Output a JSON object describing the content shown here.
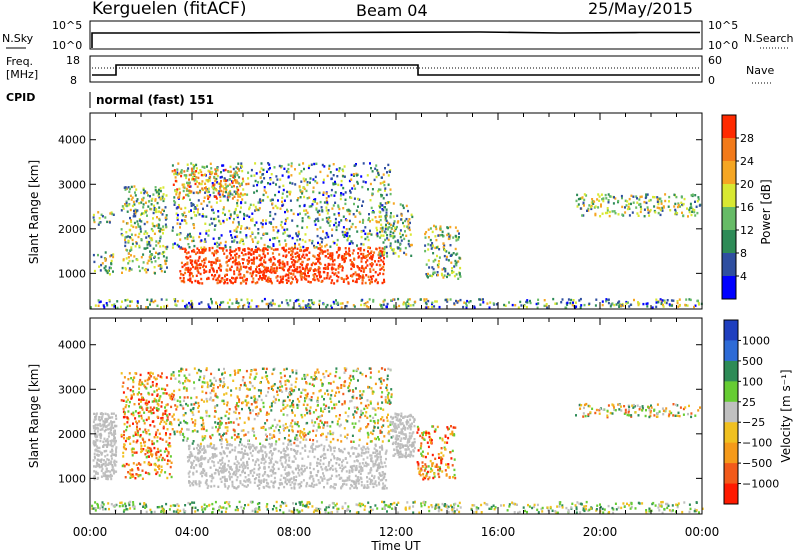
{
  "header": {
    "station": "Kerguelen (fitACF)",
    "beam": "Beam 04",
    "date": "25/May/2015"
  },
  "top_panels": {
    "nsky": {
      "label": "N.Sky",
      "ticks": [
        "10^5",
        "10^0"
      ]
    },
    "nsearch": {
      "label": "N.Search",
      "ticks": [
        "10^5",
        "10^0"
      ]
    },
    "freq": {
      "label_line1": "Freq.",
      "label_line2": "[MHz]",
      "ticks": [
        "18",
        "8"
      ]
    },
    "nave": {
      "label": "Nave",
      "ticks": [
        "60",
        "0"
      ]
    },
    "cpid": {
      "label": "CPID",
      "value": "normal (fast) 151"
    }
  },
  "chart_data": [
    {
      "type": "heatmap",
      "name": "power",
      "xlabel": "",
      "ylabel": "Slant Range [km]",
      "x_ticks": [
        "00:00",
        "04:00",
        "08:00",
        "12:00",
        "16:00",
        "20:00",
        "00:00"
      ],
      "y_ticks": [
        1000,
        2000,
        3000,
        4000
      ],
      "ylim": [
        200,
        4600
      ],
      "colorbar": {
        "label": "Power [dB]",
        "ticks": [
          4,
          8,
          12,
          16,
          20,
          24,
          28
        ],
        "colors": [
          "#0000ff",
          "#2f4fa0",
          "#2e8b57",
          "#66bb66",
          "#d8e832",
          "#f5a623",
          "#f27a1a",
          "#ff2a00"
        ]
      },
      "regions": [
        {
          "t0": 0.0,
          "t1": 0.9,
          "r0": 250,
          "r1": 450,
          "level": "mixed"
        },
        {
          "t0": 0.9,
          "t1": 13.0,
          "r0": 250,
          "r1": 450,
          "level": "mixed"
        },
        {
          "t0": 13.0,
          "t1": 24.0,
          "r0": 250,
          "r1": 450,
          "level": "mixed"
        },
        {
          "t0": 0.1,
          "t1": 0.9,
          "r0": 1000,
          "r1": 1500,
          "level": "mid"
        },
        {
          "t0": 0.1,
          "t1": 0.9,
          "r0": 2100,
          "r1": 2400,
          "level": "mid"
        },
        {
          "t0": 1.2,
          "t1": 3.0,
          "r0": 1000,
          "r1": 3000,
          "level": "mid"
        },
        {
          "t0": 3.5,
          "t1": 11.5,
          "r0": 800,
          "r1": 1600,
          "level": "strong"
        },
        {
          "t0": 3.2,
          "t1": 11.8,
          "r0": 1600,
          "r1": 3500,
          "level": "mixed"
        },
        {
          "t0": 3.2,
          "t1": 6.2,
          "r0": 2700,
          "r1": 3400,
          "level": "high"
        },
        {
          "t0": 11.3,
          "t1": 12.6,
          "r0": 1400,
          "r1": 2600,
          "level": "mid"
        },
        {
          "t0": 13.1,
          "t1": 14.5,
          "r0": 900,
          "r1": 2100,
          "level": "mid"
        },
        {
          "t0": 19.0,
          "t1": 23.9,
          "r0": 2300,
          "r1": 2800,
          "level": "mid"
        }
      ]
    },
    {
      "type": "heatmap",
      "name": "velocity",
      "xlabel": "Time UT",
      "ylabel": "Slant Range [km]",
      "x_ticks": [
        "00:00",
        "04:00",
        "08:00",
        "12:00",
        "16:00",
        "20:00",
        "00:00"
      ],
      "y_ticks": [
        1000,
        2000,
        3000,
        4000
      ],
      "ylim": [
        200,
        4600
      ],
      "colorbar": {
        "label": "Velocity [m s⁻¹]",
        "ticks": [
          1000,
          500,
          100,
          25,
          -25,
          -100,
          -500,
          -1000
        ],
        "colors": [
          "#1f3fbf",
          "#2e6bd6",
          "#2e8b57",
          "#66cc33",
          "#c0c0c0",
          "#f0c020",
          "#f59a1a",
          "#f25a1a",
          "#ff1a00"
        ]
      },
      "regions": [
        {
          "t0": 0.0,
          "t1": 24.0,
          "r0": 250,
          "r1": 500,
          "level": "ground"
        },
        {
          "t0": 0.1,
          "t1": 1.0,
          "r0": 1000,
          "r1": 2500,
          "level": "lowvel"
        },
        {
          "t0": 1.2,
          "t1": 3.2,
          "r0": 1000,
          "r1": 3400,
          "level": "away"
        },
        {
          "t0": 3.8,
          "t1": 11.6,
          "r0": 800,
          "r1": 1800,
          "level": "lowvel"
        },
        {
          "t0": 3.2,
          "t1": 11.8,
          "r0": 1800,
          "r1": 3500,
          "level": "mixed"
        },
        {
          "t0": 11.8,
          "t1": 12.7,
          "r0": 1500,
          "r1": 2500,
          "level": "lowvel"
        },
        {
          "t0": 12.8,
          "t1": 14.3,
          "r0": 1000,
          "r1": 2200,
          "level": "away"
        },
        {
          "t0": 19.0,
          "t1": 23.9,
          "r0": 2400,
          "r1": 2700,
          "level": "mixed"
        }
      ]
    }
  ]
}
